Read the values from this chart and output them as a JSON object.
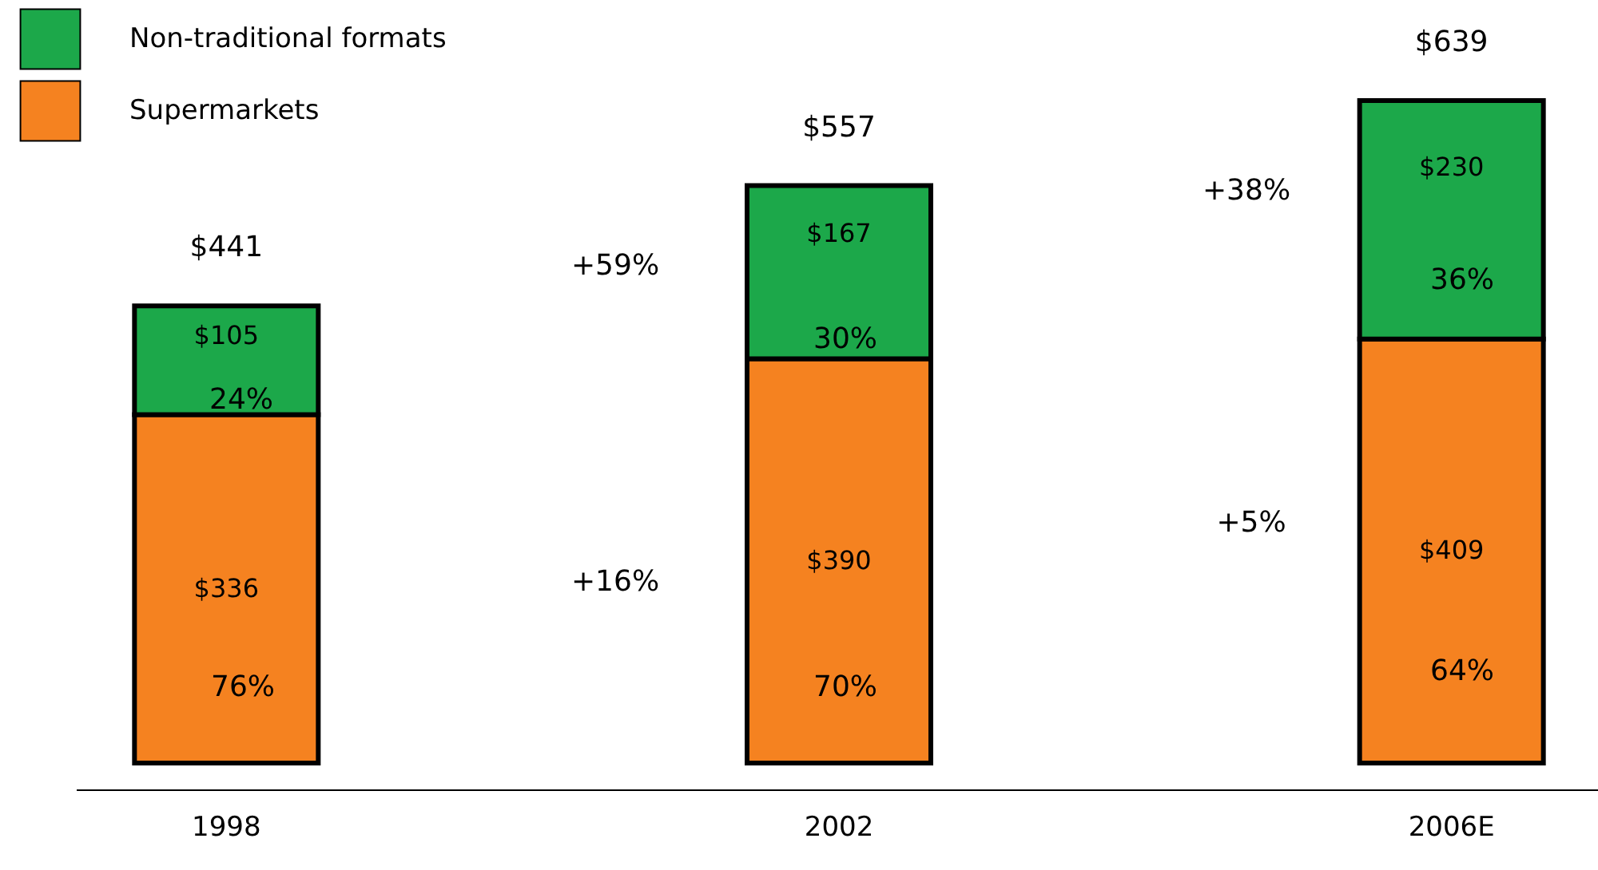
{
  "chart_data": {
    "type": "bar",
    "stacked": true,
    "categories": [
      "1998",
      "2002",
      "2006E"
    ],
    "series": [
      {
        "name": "Supermarkets",
        "color": "#f58220",
        "values": [
          336,
          390,
          409
        ],
        "value_labels": [
          "$336",
          "$390",
          "$409"
        ]
      },
      {
        "name": "Non-traditional formats",
        "color": "#1ca84a",
        "values": [
          105,
          167,
          230
        ],
        "value_labels": [
          "$105",
          "$167",
          "$230"
        ]
      }
    ],
    "totals": [
      "$441",
      "$557",
      "$639"
    ],
    "annotations": [
      "76%",
      "24%",
      "70%",
      "30%",
      "64%",
      "36%",
      "+59%",
      "+16%",
      "+38%",
      "+5%"
    ],
    "legend": "top left"
  }
}
